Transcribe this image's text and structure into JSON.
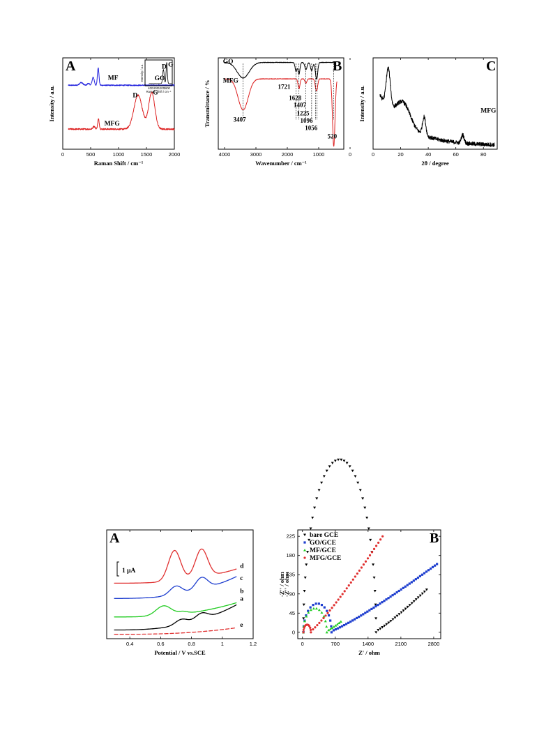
{
  "chart_data": [
    {
      "id": "raman",
      "panel": "A",
      "type": "line",
      "xlabel": "Raman Shift / cm⁻¹",
      "ylabel": "Intensity / a.u.",
      "xlim": [
        0,
        2000
      ],
      "xticks": [
        0,
        500,
        1000,
        1500,
        2000
      ],
      "ylim": [
        0,
        100
      ],
      "series": [
        {
          "name": "MF",
          "color": "#2222dd",
          "base": 70,
          "x0": 100,
          "x1": 2000,
          "noise": 0.6,
          "p": [
            [
              545,
              9,
              18
            ],
            [
              635,
              19,
              14
            ],
            [
              330,
              3,
              30
            ],
            [
              460,
              2,
              20
            ]
          ]
        },
        {
          "name": "MFG",
          "color": "#dd2222",
          "base": 22,
          "x0": 100,
          "x1": 2000,
          "noise": 0.8,
          "p": [
            [
              640,
              11,
              14
            ],
            [
              1350,
              37,
              75
            ],
            [
              1595,
              40,
              55
            ],
            [
              560,
              3,
              20
            ]
          ]
        }
      ],
      "labels": [
        {
          "text": "MF",
          "x": 810,
          "y": 76
        },
        {
          "text": "MFG",
          "x": 745,
          "y": 26
        },
        {
          "text": "D",
          "x": 1255,
          "y": 57
        },
        {
          "text": "G",
          "x": 1615,
          "y": 60
        }
      ],
      "inset": {
        "xlabel": "Raman Shift / cm⁻¹",
        "ylabel": "Intensity / a.u.",
        "xlim": [
          0,
          2000
        ],
        "xticks": [
          400,
          800,
          1200,
          1600
        ],
        "series": [
          {
            "name": "GO",
            "color": "#000000",
            "base": 8,
            "x0": 300,
            "x1": 2000,
            "noise": 0.3,
            "p": [
              [
                1350,
                55,
                55
              ],
              [
                1595,
                82,
                45
              ]
            ]
          }
        ],
        "labels": [
          {
            "text": "GO",
            "x": 700,
            "y": 22
          },
          {
            "text": "D",
            "x": 1230,
            "y": 66
          },
          {
            "text": "G",
            "x": 1700,
            "y": 74
          }
        ]
      }
    },
    {
      "id": "ftir",
      "panel": "B",
      "type": "line",
      "xlabel": "Wavenumber / cm⁻¹",
      "ylabel": "Transmittance / %",
      "xlim": [
        4200,
        200
      ],
      "xticks": [
        4000,
        3000,
        2000,
        1000,
        0
      ],
      "ylim": [
        0,
        100
      ],
      "series": [
        {
          "name": "GO",
          "color": "#000000",
          "base": 95,
          "x0": 4000,
          "x1": 500,
          "noise": 0.3,
          "p": [
            [
              3407,
              -17,
              190
            ],
            [
              1721,
              -10,
              30
            ],
            [
              1628,
              -13,
              30
            ],
            [
              1407,
              -8,
              35
            ],
            [
              1225,
              -9,
              35
            ],
            [
              1096,
              -7,
              30
            ],
            [
              1056,
              -15,
              30
            ]
          ]
        },
        {
          "name": "MFG",
          "color": "#dd2222",
          "base": 77,
          "x0": 4000,
          "x1": 420,
          "noise": 0.3,
          "p": [
            [
              3407,
              -34,
              160
            ],
            [
              1628,
              -11,
              30
            ],
            [
              1407,
              -5,
              30
            ],
            [
              1096,
              -6,
              30
            ],
            [
              1056,
              -10,
              30
            ],
            [
              520,
              -74,
              40
            ]
          ]
        }
      ],
      "labels": [
        {
          "text": "GO",
          "x": 4050,
          "y": 94
        },
        {
          "text": "MFG",
          "x": 4050,
          "y": 73
        },
        {
          "text": "3407",
          "x": 3720,
          "y": 30
        },
        {
          "text": "1721",
          "x": 2300,
          "y": 66
        },
        {
          "text": "1628",
          "x": 1950,
          "y": 54
        },
        {
          "text": "1407",
          "x": 1800,
          "y": 46
        },
        {
          "text": "1225",
          "x": 1700,
          "y": 37
        },
        {
          "text": "1096",
          "x": 1590,
          "y": 29
        },
        {
          "text": "1056",
          "x": 1440,
          "y": 21
        },
        {
          "text": "520",
          "x": 720,
          "y": 12
        }
      ],
      "marks": [
        3407,
        1721,
        1628,
        1407,
        1225,
        1096,
        1056,
        520
      ]
    },
    {
      "id": "xrd",
      "panel": "C",
      "type": "line",
      "xlabel": "2θ / degree",
      "ylabel": "Intensity / a.u.",
      "xlim": [
        0,
        90
      ],
      "xticks": [
        0,
        20,
        40,
        60,
        80
      ],
      "ylim": [
        0,
        100
      ],
      "series": [
        {
          "name": "MFG",
          "color": "#000000",
          "base": 0,
          "x0": 5,
          "x1": 88,
          "noise": 2.2,
          "decay": true,
          "p": [
            [
              11,
              42,
              1.5
            ],
            [
              22,
              24,
              5
            ],
            [
              37,
              20,
              1.2
            ],
            [
              65,
              9,
              1
            ]
          ]
        }
      ],
      "labels": [
        {
          "text": "MFG",
          "x": 78,
          "y": 40
        }
      ]
    },
    {
      "id": "cv",
      "panel": "A",
      "type": "line",
      "xlabel": "Potential / V vs.SCE",
      "ylabel": "",
      "xlim": [
        0.25,
        1.2
      ],
      "xticks": [
        0.4,
        0.6,
        0.8,
        1.0,
        1.2
      ],
      "ylim": [
        0,
        100
      ],
      "scalebar": "1 μA",
      "series": [
        {
          "name": "d",
          "color": "#e03030",
          "dash": false,
          "x0": 0.3,
          "x1": 1.09,
          "start": 51,
          "rise": 13,
          "p": [
            [
              0.69,
              28,
              0.04
            ],
            [
              0.865,
              26,
              0.04
            ]
          ]
        },
        {
          "name": "c",
          "color": "#1f3fcf",
          "dash": false,
          "x0": 0.3,
          "x1": 1.09,
          "start": 37,
          "rise": 20,
          "p": [
            [
              0.7,
              8,
              0.04
            ],
            [
              0.865,
              11,
              0.04
            ]
          ]
        },
        {
          "name": "b",
          "color": "#22cc22",
          "dash": false,
          "x0": 0.3,
          "x1": 1.09,
          "start": 20,
          "rise": 13,
          "p": [
            [
              0.62,
              9,
              0.05
            ],
            [
              0.745,
              2,
              0.03
            ]
          ]
        },
        {
          "name": "a",
          "color": "#000000",
          "dash": false,
          "x0": 0.3,
          "x1": 1.09,
          "start": 8,
          "rise": 23,
          "p": [
            [
              0.735,
              5,
              0.04
            ],
            [
              0.865,
              6,
              0.04
            ]
          ]
        },
        {
          "name": "e",
          "color": "#e03030",
          "dash": true,
          "x0": 0.3,
          "x1": 1.09,
          "start": 4,
          "rise": 6,
          "p": []
        }
      ],
      "labels": [
        {
          "text": "d",
          "x": 1.115,
          "y": 65
        },
        {
          "text": "c",
          "x": 1.115,
          "y": 54
        },
        {
          "text": "b",
          "x": 1.115,
          "y": 42
        },
        {
          "text": "a",
          "x": 1.115,
          "y": 35
        },
        {
          "text": "e",
          "x": 1.115,
          "y": 11
        }
      ]
    },
    {
      "id": "eis",
      "panel": "B",
      "type": "scatter",
      "xlabel": "Z' / ohm",
      "ylabel": "-Z'' / ohm",
      "xlim": [
        -100,
        2950
      ],
      "xticks": [
        0,
        700,
        1400,
        2100,
        2800
      ],
      "ylim": [
        -15,
        240
      ],
      "yticks": [
        0,
        45,
        90,
        135,
        180,
        225
      ],
      "series": [
        {
          "name": "bare GCE",
          "color": "#000000",
          "marker": "tri-down",
          "Rs": 20,
          "Rct": 1550,
          "tail": [
            2650,
            100
          ]
        },
        {
          "name": "GO/GCE",
          "color": "#1f3fcf",
          "marker": "square",
          "Rs": 20,
          "Rct": 600,
          "tail": [
            2870,
            160
          ]
        },
        {
          "name": "MF/GCE",
          "color": "#22cc22",
          "marker": "tri-up",
          "Rs": 20,
          "Rct": 500,
          "tail": [
            820,
            25
          ]
        },
        {
          "name": "MFG/GCE",
          "color": "#e03030",
          "marker": "circle",
          "Rs": 20,
          "Rct": 160,
          "tail": [
            1710,
            225
          ]
        }
      ]
    }
  ]
}
